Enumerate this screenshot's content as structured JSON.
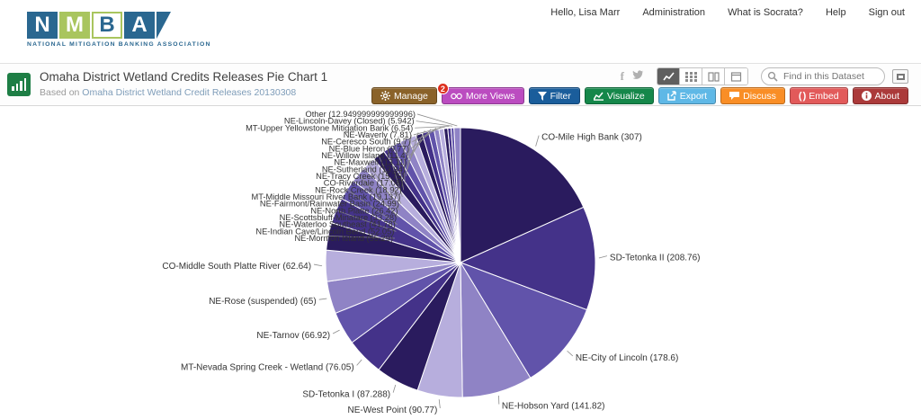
{
  "header": {
    "logo": {
      "letters": [
        "N",
        "M",
        "B",
        "A"
      ],
      "tagline": "NATIONAL MITIGATION BANKING ASSOCIATION"
    },
    "nav": {
      "greeting": "Hello, Lisa Marr",
      "items": [
        "Administration",
        "What is Socrata?",
        "Help",
        "Sign out"
      ]
    }
  },
  "dataset": {
    "title": "Omaha District Wetland Credits Releases Pie Chart 1",
    "based_on_prefix": "Based on",
    "based_on_link": "Omaha District Wetland Credit Releases 20130308"
  },
  "toolbar": {
    "manage_label": "Manage",
    "more_views_label": "More Views",
    "more_views_badge": "2",
    "filter_label": "Filter",
    "visualize_label": "Visualize",
    "export_label": "Export",
    "discuss_label": "Discuss",
    "embed_label": "Embed",
    "about_label": "About",
    "search_placeholder": "Find in this Dataset",
    "colors": {
      "manage": "#8a6229",
      "more_views": "#bb4cc0",
      "filter": "#1a5d9b",
      "visualize": "#15874a",
      "export": "#5fb8e6",
      "discuss": "#f98e26",
      "embed": "#e25a5a",
      "about": "#ab3a3a"
    }
  },
  "chart_data": {
    "type": "pie",
    "title": "Omaha District Wetland Credits Releases Pie Chart 1",
    "legend_position": "none",
    "start_angle_deg": 0,
    "direction": "clockwise",
    "labels": [
      "CO-Mile High Bank",
      "SD-Tetonka II",
      "NE-City of Lincoln",
      "NE-Hobson Yard",
      "NE-West Point",
      "SD-Tetonka I",
      "MT-Nevada Spring Creek - Wetland",
      "NE-Tarnov",
      "NE-Rose (suspended)",
      "CO-Middle South Platte River",
      "NE-Mormon Island",
      "NE-Indian Cave/Lincoln Bend",
      "NE-Waterloo Southeast",
      "NE-Scottsbluff-Minatare",
      "NE-North Platte",
      "NE-Fairmont/Rainwater Basin",
      "MT-Middle Missouri River Bank",
      "NE-Rock Creek",
      "CO-Riverdale",
      "NE-Tracy Creek",
      "NE-Sutherland",
      "NE-Maxwell",
      "NE-Willow Island",
      "NE-Blue Heron",
      "NE-Ceresco South",
      "NE-Waverly",
      "MT-Upper Yellowstone Mitigation Bank",
      "NE-Lincoln-Davey (Closed)",
      "Other"
    ],
    "values": [
      307,
      208.76,
      178.6,
      141.82,
      90.77,
      87.288,
      76.05,
      66.92,
      65,
      62.64,
      55.29,
      52.05,
      41.78,
      33.28,
      26.42,
      24.99,
      19.137,
      18.92,
      17.08,
      15.75,
      13.34,
      13.11,
      11.4,
      9.77,
      9.7,
      7.81,
      6.54,
      5.942,
      12.949999999999996
    ],
    "palette": [
      "#2a1b5e",
      "#443289",
      "#6153aa",
      "#8f83c5",
      "#b7aedd"
    ],
    "label_color": "#333333",
    "leader_line_color": "#8c8c8c"
  }
}
